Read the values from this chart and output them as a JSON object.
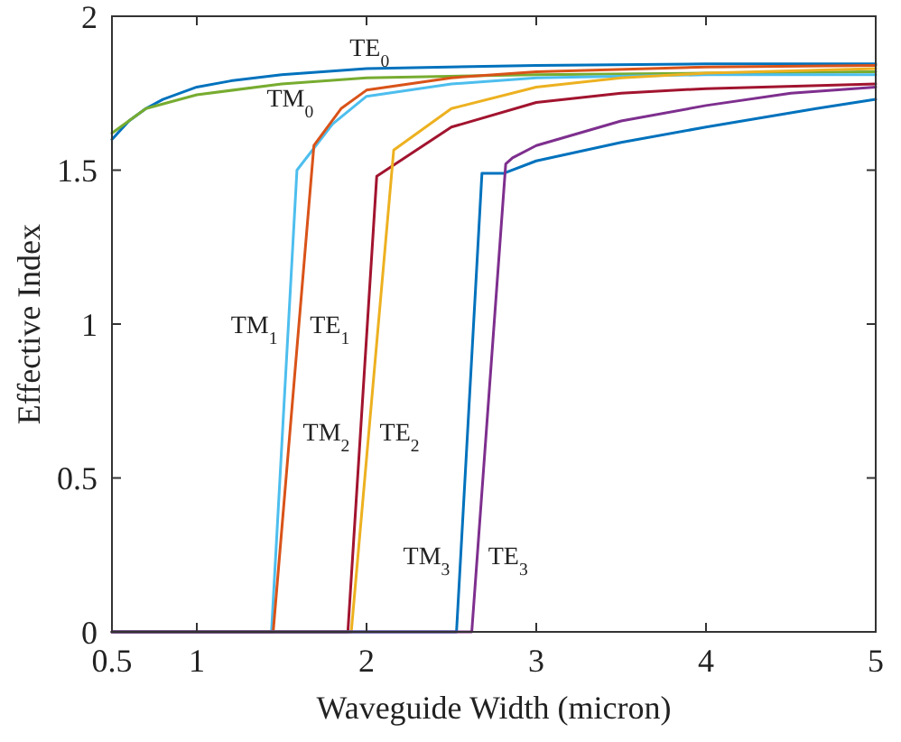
{
  "chart_data": {
    "type": "line",
    "xlabel": "Waveguide Width (micron)",
    "ylabel": "Effective Index",
    "xlim": [
      0.5,
      5
    ],
    "ylim": [
      0,
      2
    ],
    "xticks": [
      0.5,
      1,
      2,
      3,
      4,
      5
    ],
    "yticks": [
      0,
      0.5,
      1,
      1.5,
      2
    ],
    "grid": false,
    "marker": "none",
    "line_style": "solid",
    "series": [
      {
        "name": "TE$_{0}$",
        "color": "#0072bd",
        "x": [
          0.5,
          0.6,
          0.7,
          0.8,
          1.0,
          1.2,
          1.5,
          2,
          3,
          4,
          5
        ],
        "values": [
          1.6,
          1.66,
          1.7,
          1.73,
          1.77,
          1.79,
          1.81,
          1.83,
          1.84,
          1.845,
          1.845
        ]
      },
      {
        "name": "TM$_{0}$",
        "color": "#77ac30",
        "x": [
          0.5,
          0.7,
          1.0,
          1.5,
          2,
          3,
          4,
          5
        ],
        "values": [
          1.62,
          1.7,
          1.745,
          1.78,
          1.8,
          1.81,
          1.815,
          1.82
        ]
      },
      {
        "name": "TM$_{1}$",
        "color": "#4dbeee",
        "x": [
          0.5,
          1.44,
          1.59,
          1.8,
          2,
          2.5,
          3,
          4,
          5
        ],
        "values": [
          0,
          0,
          1.5,
          1.65,
          1.74,
          1.78,
          1.8,
          1.81,
          1.81
        ]
      },
      {
        "name": "TE$_{1}$",
        "color": "#d95319",
        "x": [
          0.5,
          1.45,
          1.69,
          1.85,
          2,
          2.5,
          3,
          4,
          5
        ],
        "values": [
          0,
          0,
          1.58,
          1.7,
          1.76,
          1.8,
          1.82,
          1.835,
          1.84
        ]
      },
      {
        "name": "TM$_{2}$",
        "color": "#a2142f",
        "x": [
          0.5,
          1.89,
          2.06,
          2.5,
          3,
          3.5,
          4,
          5
        ],
        "values": [
          0,
          0,
          1.48,
          1.64,
          1.72,
          1.75,
          1.765,
          1.78
        ]
      },
      {
        "name": "TE$_{2}$",
        "color": "#edb120",
        "x": [
          0.5,
          1.91,
          2.16,
          2.5,
          3,
          3.5,
          4,
          5
        ],
        "values": [
          0,
          0,
          1.565,
          1.7,
          1.77,
          1.8,
          1.815,
          1.83
        ]
      },
      {
        "name": "TM$_{3}$",
        "color": "#0072bd",
        "x": [
          0.5,
          2.53,
          2.68,
          2.81,
          3,
          3.5,
          4,
          4.65,
          5
        ],
        "values": [
          0,
          0,
          1.49,
          1.49,
          1.53,
          1.59,
          1.64,
          1.7,
          1.73
        ]
      },
      {
        "name": "TE$_{3}$",
        "color": "#7e2f8e",
        "x": [
          0.5,
          2.62,
          2.82,
          2.86,
          3,
          3.5,
          4,
          4.5,
          5
        ],
        "values": [
          0,
          0,
          1.52,
          1.54,
          1.58,
          1.66,
          1.71,
          1.75,
          1.77
        ]
      }
    ]
  }
}
